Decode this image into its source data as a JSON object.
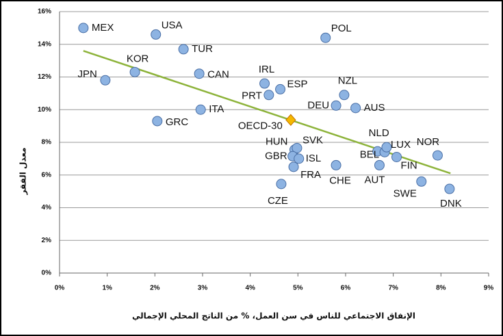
{
  "chart_data": {
    "type": "scatter",
    "xlabel": "الإنفاق الاجتماعي للناس في سن العمل، % من الناتج المحلي الإجمالي",
    "ylabel": "معدل الفقر",
    "labels": [
      "MEX",
      "USA",
      "TUR",
      "KOR",
      "JPN",
      "CAN",
      "IRL",
      "ESP",
      "PRT",
      "POL",
      "NZL",
      "DEU",
      "AUS",
      "ITA",
      "GRC",
      "HUN",
      "SVK",
      "GBR",
      "ISL",
      "FRA",
      "CZE",
      "CHE",
      "NLD",
      "BEL",
      "LUX",
      "FIN",
      "AUT",
      "NOR",
      "SWE",
      "DNK"
    ],
    "x": [
      0.5,
      2.02,
      2.6,
      1.58,
      0.96,
      2.93,
      4.3,
      4.63,
      4.39,
      5.58,
      5.97,
      5.8,
      6.21,
      2.96,
      2.05,
      4.93,
      4.98,
      4.89,
      5.02,
      4.91,
      4.65,
      5.8,
      6.67,
      6.82,
      6.86,
      7.07,
      6.71,
      7.93,
      7.59,
      8.18
    ],
    "values": [
      15.0,
      14.6,
      13.7,
      12.3,
      11.8,
      12.2,
      11.6,
      11.25,
      10.9,
      14.4,
      10.9,
      10.25,
      10.1,
      10.0,
      9.3,
      7.55,
      7.65,
      7.15,
      7.0,
      6.5,
      5.45,
      6.6,
      7.45,
      7.4,
      7.7,
      7.1,
      6.6,
      7.2,
      5.6,
      5.15
    ],
    "color": "#8db3e2",
    "highlight": {
      "label": "OECD-30",
      "x": 4.85,
      "y": 9.37,
      "color": "#f5b800"
    },
    "trend": {
      "x": [
        0.5,
        8.2
      ],
      "y": [
        13.6,
        6.1
      ],
      "color": "#8db33a"
    },
    "xlim": [
      0,
      9
    ],
    "xticks": [
      {
        "value": 0,
        "label": "0%"
      },
      {
        "value": 1,
        "label": "1%"
      },
      {
        "value": 2,
        "label": "2%"
      },
      {
        "value": 3,
        "label": "3%"
      },
      {
        "value": 4,
        "label": "4%"
      },
      {
        "value": 5,
        "label": "5%"
      },
      {
        "value": 6,
        "label": "6%"
      },
      {
        "value": 7,
        "label": "7%"
      },
      {
        "value": 8,
        "label": "8%"
      },
      {
        "value": 9,
        "label": "9%"
      }
    ],
    "ylim": [
      0,
      16
    ],
    "yticks": [
      {
        "value": 0,
        "label": "0%"
      },
      {
        "value": 2,
        "label": "2%"
      },
      {
        "value": 4,
        "label": "4%"
      },
      {
        "value": 6,
        "label": "6%"
      },
      {
        "value": 8,
        "label": "8%"
      },
      {
        "value": 10,
        "label": "10%"
      },
      {
        "value": 12,
        "label": "12%"
      },
      {
        "value": 14,
        "label": "14%"
      },
      {
        "value": 16,
        "label": "16%"
      }
    ],
    "grid": true
  }
}
